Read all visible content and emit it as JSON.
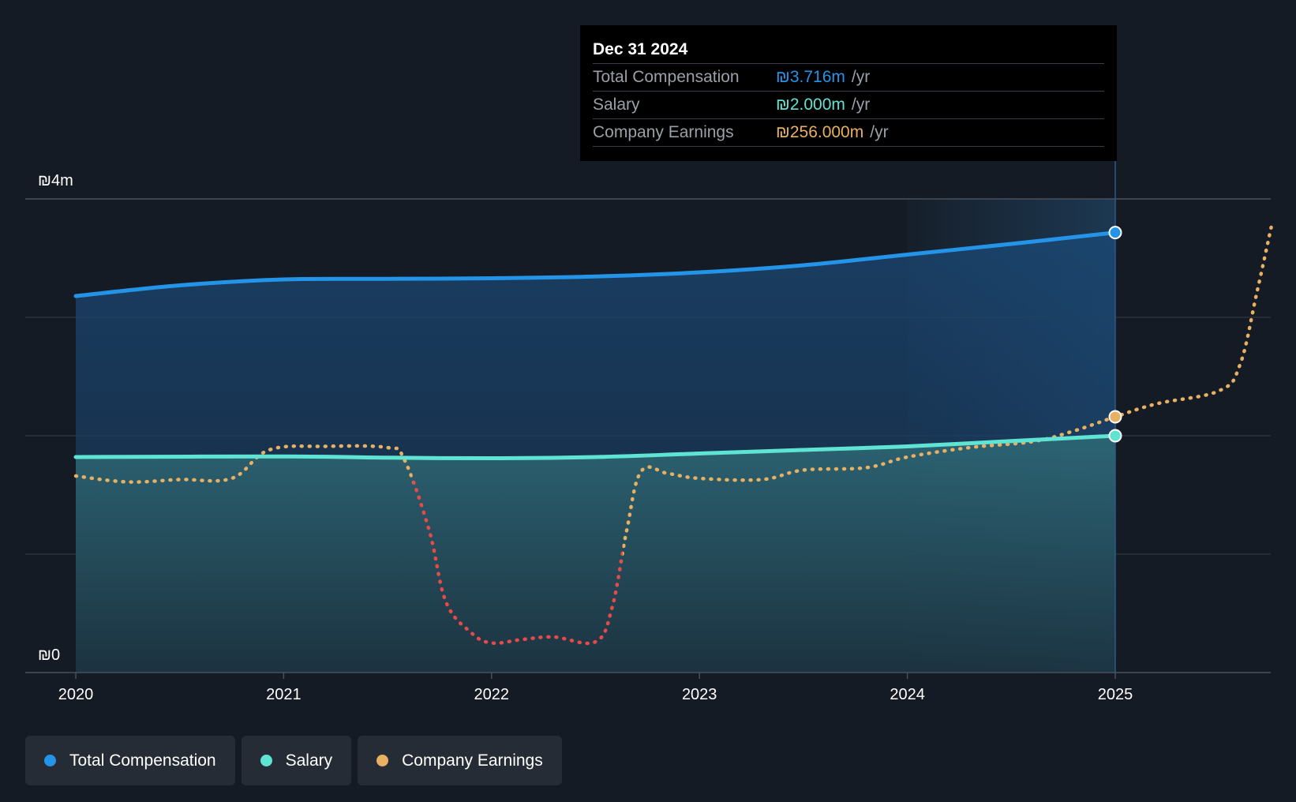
{
  "colors": {
    "background": "#151b24",
    "total_compensation": "#2394e8",
    "salary": "#5fe3d2",
    "company_earnings": "#e8b063",
    "earnings_negative": "#e84a4a",
    "grid": "#3a414b",
    "highlight": "#1f3d5c"
  },
  "tooltip": {
    "date": "Dec 31 2024",
    "rows": [
      {
        "name": "Total Compensation",
        "value": "₪3.716m",
        "unit": "/yr",
        "color_key": "total_compensation"
      },
      {
        "name": "Salary",
        "value": "₪2.000m",
        "unit": "/yr",
        "color_key": "salary"
      },
      {
        "name": "Company Earnings",
        "value": "₪256.000m",
        "unit": "/yr",
        "color_key": "company_earnings"
      }
    ]
  },
  "legend": [
    {
      "label": "Total Compensation",
      "color_key": "total_compensation"
    },
    {
      "label": "Salary",
      "color_key": "salary"
    },
    {
      "label": "Company Earnings",
      "color_key": "company_earnings"
    }
  ],
  "chart_data": {
    "type": "line",
    "title": "",
    "xlabel": "",
    "ylabel": "",
    "y_tick_labels": {
      "top": "₪4m",
      "bottom": "₪0"
    },
    "ylim": [
      0,
      4
    ],
    "xlim": [
      2019.75,
      2025.75
    ],
    "x_ticks": [
      2020,
      2021,
      2022,
      2023,
      2024,
      2025
    ],
    "x_tick_labels": [
      "2020",
      "2021",
      "2022",
      "2023",
      "2024",
      "2025"
    ],
    "grid_values": [
      1,
      2,
      3,
      4
    ],
    "highlight_range": [
      2024,
      2025
    ],
    "series": [
      {
        "name": "Total Compensation",
        "color_key": "total_compensation",
        "style": "solid-area",
        "points": [
          [
            2020.0,
            3.18
          ],
          [
            2020.5,
            3.27
          ],
          [
            2021.0,
            3.32
          ],
          [
            2021.5,
            3.325
          ],
          [
            2022.0,
            3.33
          ],
          [
            2022.5,
            3.345
          ],
          [
            2023.0,
            3.38
          ],
          [
            2023.5,
            3.44
          ],
          [
            2024.0,
            3.53
          ],
          [
            2024.5,
            3.62
          ],
          [
            2025.0,
            3.716
          ]
        ]
      },
      {
        "name": "Salary",
        "color_key": "salary",
        "style": "solid-area",
        "points": [
          [
            2020.0,
            1.82
          ],
          [
            2021.0,
            1.825
          ],
          [
            2021.5,
            1.815
          ],
          [
            2022.0,
            1.81
          ],
          [
            2022.5,
            1.82
          ],
          [
            2023.0,
            1.85
          ],
          [
            2023.5,
            1.88
          ],
          [
            2024.0,
            1.91
          ],
          [
            2024.5,
            1.955
          ],
          [
            2025.0,
            2.0
          ]
        ]
      },
      {
        "name": "Company Earnings",
        "color_key": "company_earnings",
        "negative_color_key": "earnings_negative",
        "style": "dotted",
        "points": [
          [
            2020.0,
            1.66
          ],
          [
            2020.25,
            1.61
          ],
          [
            2020.5,
            1.63
          ],
          [
            2020.75,
            1.64
          ],
          [
            2020.93,
            1.88
          ],
          [
            2021.2,
            1.91
          ],
          [
            2021.5,
            1.9
          ],
          [
            2021.58,
            1.8
          ],
          [
            2021.7,
            1.2
          ],
          [
            2021.78,
            0.6
          ],
          [
            2021.9,
            0.34
          ],
          [
            2022.0,
            0.25
          ],
          [
            2022.15,
            0.28
          ],
          [
            2022.3,
            0.3
          ],
          [
            2022.5,
            0.26
          ],
          [
            2022.58,
            0.55
          ],
          [
            2022.65,
            1.2
          ],
          [
            2022.72,
            1.7
          ],
          [
            2022.85,
            1.68
          ],
          [
            2023.0,
            1.64
          ],
          [
            2023.3,
            1.63
          ],
          [
            2023.5,
            1.71
          ],
          [
            2023.8,
            1.73
          ],
          [
            2024.0,
            1.82
          ],
          [
            2024.3,
            1.9
          ],
          [
            2024.6,
            1.95
          ],
          [
            2024.8,
            2.04
          ],
          [
            2025.0,
            2.16
          ],
          [
            2025.2,
            2.27
          ],
          [
            2025.5,
            2.38
          ],
          [
            2025.6,
            2.6
          ],
          [
            2025.68,
            3.2
          ],
          [
            2025.75,
            3.76
          ]
        ]
      }
    ]
  }
}
